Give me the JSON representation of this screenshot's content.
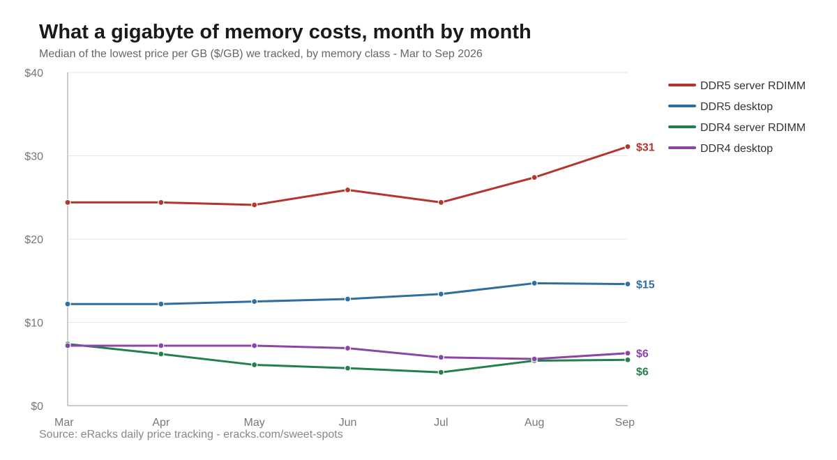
{
  "title": "What a gigabyte of memory costs, month by month",
  "subtitle": "Median of the lowest price per GB ($/GB) we tracked, by memory class - Mar to Sep 2026",
  "source": "Source: eRacks daily price tracking - eracks.com/sweet-spots",
  "chart_data": {
    "type": "line",
    "categories": [
      "Mar",
      "Apr",
      "May",
      "Jun",
      "Jul",
      "Aug",
      "Sep"
    ],
    "ylim": [
      0,
      40
    ],
    "yticks": [
      0,
      10,
      20,
      30,
      40
    ],
    "ytick_labels": [
      "$0",
      "$10",
      "$20",
      "$30",
      "$40"
    ],
    "grid": "horizontal",
    "legend_position": "right",
    "series": [
      {
        "name": "DDR5 server RDIMM",
        "color": "#b5342b",
        "values": [
          24.4,
          24.4,
          24.1,
          25.9,
          24.4,
          27.4,
          31.1
        ],
        "end_label": "$31"
      },
      {
        "name": "DDR5 desktop",
        "color": "#2e6fa0",
        "values": [
          12.2,
          12.2,
          12.5,
          12.8,
          13.4,
          14.7,
          14.6
        ],
        "end_label": "$15"
      },
      {
        "name": "DDR4 server RDIMM",
        "color": "#23804d",
        "values": [
          7.4,
          6.2,
          4.9,
          4.5,
          4.0,
          5.4,
          5.5
        ],
        "end_label": "$6"
      },
      {
        "name": "DDR4 desktop",
        "color": "#8b44a8",
        "values": [
          7.2,
          7.2,
          7.2,
          6.9,
          5.8,
          5.6,
          6.3
        ],
        "end_label": "$6"
      }
    ]
  }
}
